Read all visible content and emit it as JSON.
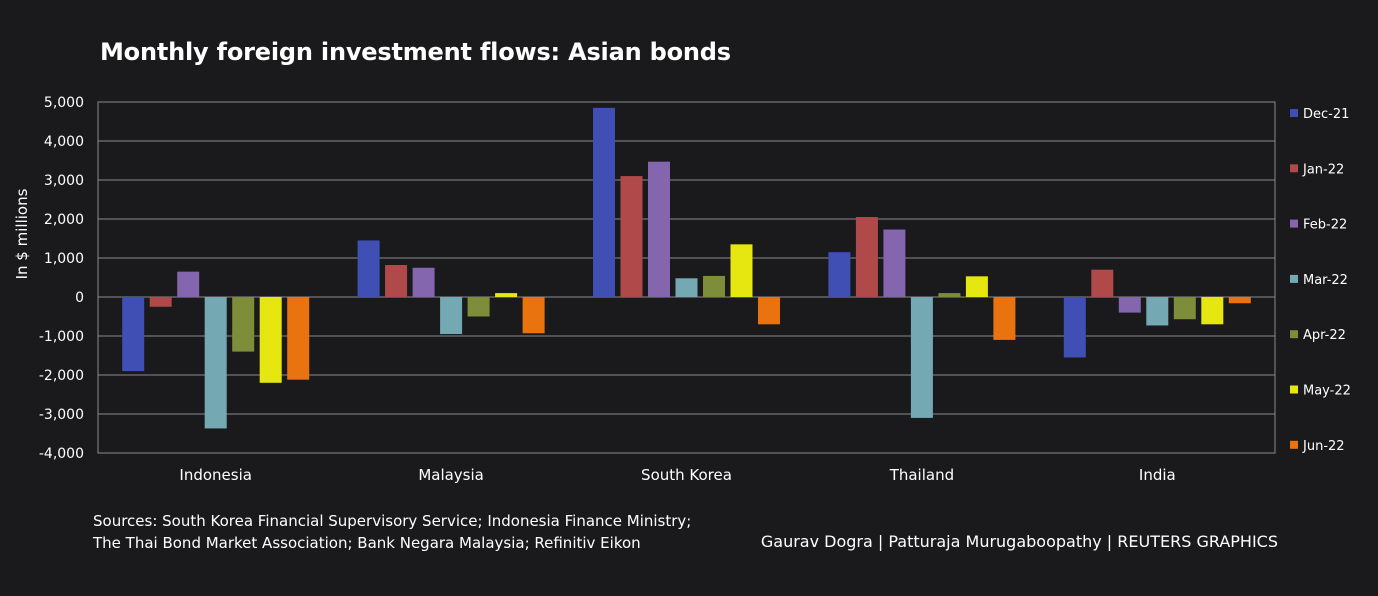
{
  "chart_data": {
    "type": "bar",
    "title": "Monthly foreign investment flows: Asian bonds",
    "ylabel": "In $ millions",
    "xlabel": "",
    "ylim": [
      -4000,
      5000
    ],
    "yticks": [
      -4000,
      -3000,
      -2000,
      -1000,
      0,
      1000,
      2000,
      3000,
      4000,
      5000
    ],
    "ytick_labels": [
      "-4,000",
      "-3,000",
      "-2,000",
      "-1,000",
      "0",
      "1,000",
      "2,000",
      "3,000",
      "4,000",
      "5,000"
    ],
    "grid": true,
    "legend_position": "right",
    "categories": [
      "Indonesia",
      "Malaysia",
      "South Korea",
      "Thailand",
      "India"
    ],
    "series": [
      {
        "name": "Dec-21",
        "color": "#3f4fb3",
        "values": [
          -1900,
          1450,
          4850,
          1150,
          -1550
        ]
      },
      {
        "name": "Jan-22",
        "color": "#b04a4a",
        "values": [
          -250,
          820,
          3100,
          2050,
          700
        ]
      },
      {
        "name": "Feb-22",
        "color": "#8366ad",
        "values": [
          650,
          750,
          3470,
          1730,
          -400
        ]
      },
      {
        "name": "Mar-22",
        "color": "#74a9b3",
        "values": [
          -3370,
          -950,
          480,
          -3100,
          -730
        ]
      },
      {
        "name": "Apr-22",
        "color": "#7e8d39",
        "values": [
          -1400,
          -500,
          540,
          100,
          -570
        ]
      },
      {
        "name": "May-22",
        "color": "#e6e611",
        "values": [
          -2200,
          100,
          1350,
          530,
          -700
        ]
      },
      {
        "name": "Jun-22",
        "color": "#e8730f",
        "values": [
          -2120,
          -930,
          -700,
          -1100,
          -160
        ]
      }
    ]
  },
  "footer": {
    "sources_line1": "Sources: South Korea Financial Supervisory Service; Indonesia Finance Ministry;",
    "sources_line2": "The Thai Bond Market Association; Bank Negara Malaysia; Refinitiv Eikon",
    "credit": "Gaurav Dogra | Patturaja Murugaboopathy | REUTERS GRAPHICS"
  }
}
